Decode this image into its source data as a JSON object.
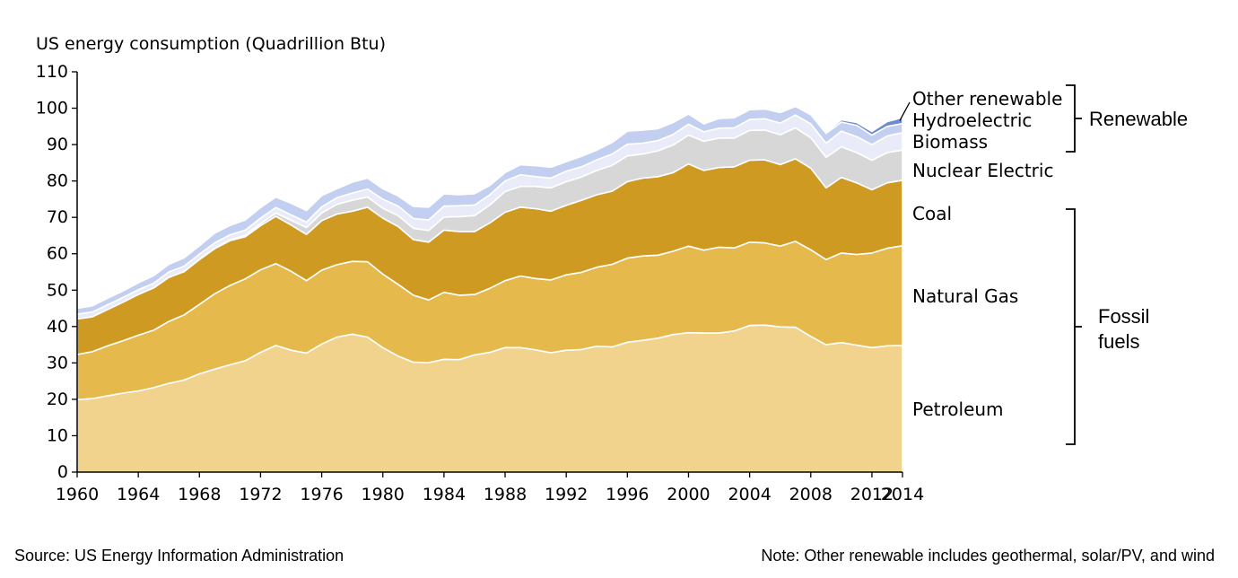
{
  "chart_data": {
    "type": "area",
    "stacked": true,
    "ylabel": "US energy consumption (Quadrillion Btu)",
    "ylim": [
      0,
      110
    ],
    "yticks": [
      0,
      10,
      20,
      30,
      40,
      50,
      60,
      70,
      80,
      90,
      100,
      110
    ],
    "xlim": [
      1960,
      2014
    ],
    "xticks": [
      "1960",
      "1964",
      "1968",
      "1972",
      "1976",
      "1980",
      "1984",
      "1988",
      "1992",
      "1996",
      "2000",
      "2004",
      "2008",
      "2012",
      "2014"
    ],
    "grid": false,
    "x": [
      1960,
      1961,
      1962,
      1963,
      1964,
      1965,
      1966,
      1967,
      1968,
      1969,
      1970,
      1971,
      1972,
      1973,
      1974,
      1975,
      1976,
      1977,
      1978,
      1979,
      1980,
      1981,
      1982,
      1983,
      1984,
      1985,
      1986,
      1987,
      1988,
      1989,
      1990,
      1991,
      1992,
      1993,
      1994,
      1995,
      1996,
      1997,
      1998,
      1999,
      2000,
      2001,
      2002,
      2003,
      2004,
      2005,
      2006,
      2007,
      2008,
      2009,
      2010,
      2011,
      2012,
      2013,
      2014
    ],
    "series": [
      {
        "name": "Petroleum",
        "color": "#f1d38d",
        "values": [
          19.9,
          20.2,
          21.0,
          21.7,
          22.3,
          23.2,
          24.4,
          25.3,
          27.0,
          28.3,
          29.5,
          30.6,
          32.9,
          34.8,
          33.5,
          32.7,
          35.2,
          37.1,
          37.9,
          37.1,
          34.2,
          31.9,
          30.2,
          30.1,
          31.0,
          30.9,
          32.2,
          32.9,
          34.2,
          34.2,
          33.6,
          32.8,
          33.5,
          33.7,
          34.6,
          34.4,
          35.7,
          36.2,
          36.8,
          37.8,
          38.3,
          38.2,
          38.2,
          38.8,
          40.3,
          40.4,
          39.9,
          39.8,
          37.3,
          35.0,
          35.6,
          34.9,
          34.2,
          34.7,
          34.8
        ]
      },
      {
        "name": "Natural Gas",
        "color": "#e6b94d",
        "values": [
          12.4,
          12.9,
          13.7,
          14.4,
          15.3,
          15.8,
          17.0,
          17.9,
          19.1,
          20.7,
          21.8,
          22.5,
          22.7,
          22.5,
          21.7,
          19.9,
          20.3,
          19.9,
          20.0,
          20.7,
          20.2,
          19.7,
          18.4,
          17.2,
          18.4,
          17.7,
          16.6,
          17.6,
          18.4,
          19.7,
          19.6,
          20.0,
          20.7,
          21.2,
          21.7,
          22.7,
          23.1,
          23.2,
          22.8,
          22.9,
          23.8,
          22.8,
          23.6,
          22.8,
          22.9,
          22.6,
          22.2,
          23.6,
          23.8,
          23.4,
          24.6,
          24.9,
          26.0,
          26.8,
          27.4
        ]
      },
      {
        "name": "Coal",
        "color": "#cf9a22",
        "values": [
          9.8,
          9.6,
          10.0,
          10.6,
          11.2,
          11.6,
          12.1,
          11.9,
          12.3,
          12.4,
          12.3,
          11.6,
          12.1,
          13.0,
          12.7,
          12.7,
          13.6,
          13.9,
          13.8,
          15.0,
          15.4,
          15.9,
          15.3,
          15.9,
          17.1,
          17.5,
          17.3,
          18.0,
          18.8,
          18.9,
          19.2,
          18.9,
          19.1,
          19.8,
          19.9,
          20.1,
          21.0,
          21.4,
          21.6,
          21.6,
          22.6,
          21.9,
          21.9,
          22.3,
          22.5,
          22.8,
          22.4,
          22.7,
          22.4,
          19.7,
          20.8,
          19.7,
          17.4,
          18.0,
          18.0
        ]
      },
      {
        "name": "Nuclear Electric",
        "color": "#d7d7d7",
        "values": [
          0.0,
          0.0,
          0.0,
          0.0,
          0.0,
          0.0,
          0.1,
          0.1,
          0.1,
          0.2,
          0.2,
          0.4,
          0.6,
          0.9,
          1.3,
          1.9,
          2.1,
          2.7,
          3.0,
          2.8,
          2.7,
          3.0,
          3.1,
          3.2,
          3.6,
          4.1,
          4.4,
          4.9,
          5.7,
          5.7,
          6.1,
          6.4,
          6.5,
          6.4,
          6.7,
          7.1,
          7.1,
          6.6,
          7.1,
          7.6,
          7.9,
          8.0,
          8.1,
          7.9,
          8.2,
          8.2,
          8.2,
          8.5,
          8.4,
          8.4,
          8.4,
          8.3,
          8.1,
          8.3,
          8.3
        ]
      },
      {
        "name": "Biomass",
        "color": "#e9ecf8",
        "values": [
          1.3,
          1.3,
          1.3,
          1.3,
          1.3,
          1.3,
          1.4,
          1.4,
          1.4,
          1.4,
          1.4,
          1.4,
          1.5,
          1.5,
          1.5,
          1.5,
          1.7,
          1.8,
          2.0,
          2.2,
          2.5,
          2.6,
          2.7,
          2.9,
          3.0,
          3.0,
          2.9,
          2.8,
          2.9,
          3.2,
          2.7,
          2.7,
          2.9,
          2.8,
          2.9,
          3.1,
          3.2,
          3.0,
          2.8,
          2.9,
          3.0,
          2.6,
          2.7,
          2.8,
          3.0,
          3.1,
          3.2,
          3.5,
          3.8,
          3.9,
          4.3,
          4.4,
          4.3,
          4.6,
          4.8
        ]
      },
      {
        "name": "Hydroelectric",
        "color": "#c3cff0",
        "values": [
          1.6,
          1.7,
          1.8,
          1.8,
          1.9,
          2.1,
          2.1,
          2.3,
          2.3,
          2.7,
          2.6,
          2.8,
          2.9,
          2.9,
          3.2,
          3.2,
          3.1,
          2.5,
          3.0,
          3.0,
          2.9,
          2.8,
          3.3,
          3.5,
          3.4,
          3.0,
          3.1,
          2.6,
          2.3,
          2.8,
          3.0,
          3.0,
          2.6,
          2.9,
          2.7,
          3.2,
          3.6,
          3.6,
          3.3,
          3.3,
          2.8,
          2.2,
          2.7,
          2.8,
          2.7,
          2.7,
          2.9,
          2.4,
          2.5,
          2.7,
          2.5,
          3.1,
          2.6,
          2.6,
          2.5
        ]
      },
      {
        "name": "Other renewable",
        "color": "#6e8bd0",
        "values": [
          0.0,
          0.0,
          0.0,
          0.0,
          0.0,
          0.0,
          0.0,
          0.0,
          0.0,
          0.0,
          0.0,
          0.0,
          0.0,
          0.0,
          0.0,
          0.0,
          0.0,
          0.0,
          0.0,
          0.0,
          0.0,
          0.0,
          0.0,
          0.0,
          0.0,
          0.0,
          0.0,
          0.0,
          0.0,
          0.0,
          0.0,
          0.0,
          0.0,
          0.0,
          0.0,
          0.0,
          0.0,
          0.0,
          0.0,
          0.0,
          0.0,
          0.0,
          0.0,
          0.0,
          0.0,
          0.1,
          0.1,
          0.2,
          0.3,
          0.4,
          0.6,
          0.8,
          1.0,
          1.3,
          1.6
        ]
      }
    ],
    "series_labels": [
      "Other renewable",
      "Hydroelectric",
      "Biomass",
      "Nuclear Electric",
      "Coal",
      "Natural Gas",
      "Petroleum"
    ],
    "groups": [
      {
        "label": "Renewable",
        "members": [
          "Other renewable",
          "Hydroelectric",
          "Biomass"
        ]
      },
      {
        "label": "Fossil fuels",
        "label_lines": [
          "Fossil",
          "fuels"
        ],
        "members": [
          "Coal",
          "Natural Gas",
          "Petroleum"
        ]
      }
    ]
  },
  "footer": {
    "source": "Source: US Energy Information Administration",
    "note": "Note: Other renewable includes geothermal, solar/PV, and wind"
  }
}
